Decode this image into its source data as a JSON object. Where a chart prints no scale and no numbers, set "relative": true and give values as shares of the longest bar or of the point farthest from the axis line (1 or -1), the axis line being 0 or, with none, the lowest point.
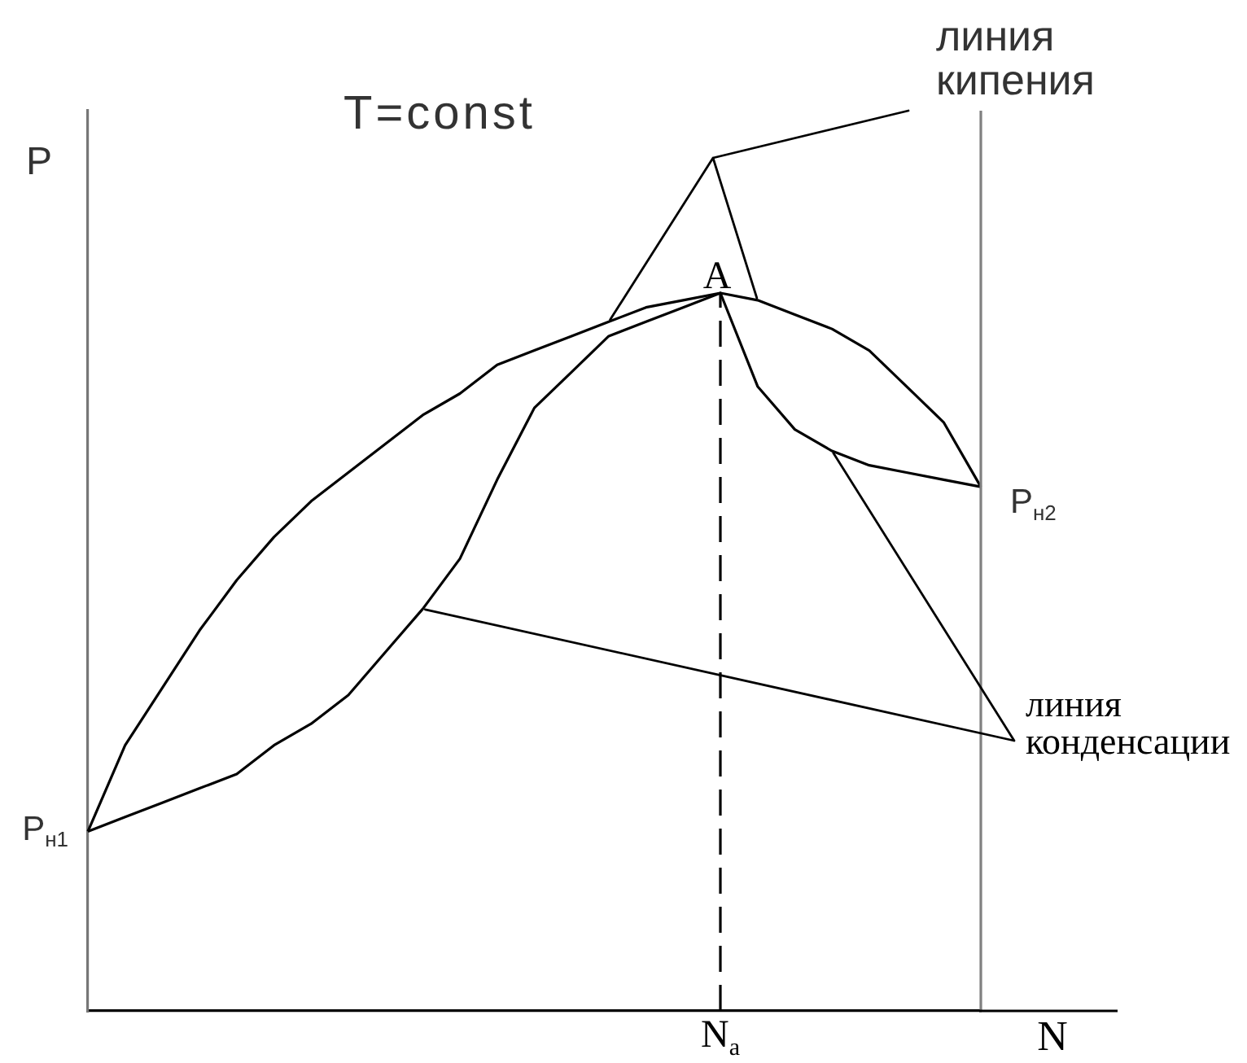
{
  "chart_data": {
    "type": "line",
    "title": "T=const",
    "xlabel": "N",
    "ylabel": "P",
    "relative": true,
    "categories": [
      null,
      null,
      null,
      null,
      null,
      null,
      null,
      null,
      null,
      null,
      null,
      null,
      null,
      null,
      null,
      null,
      null,
      null,
      null,
      null,
      null,
      null,
      null,
      null,
      null
    ],
    "series": [
      {
        "color": "#000000",
        "values": [
          0.25,
          0.37,
          0.45,
          0.53,
          0.6,
          0.66,
          0.71,
          0.75,
          0.79,
          0.83,
          0.86,
          0.9,
          0.92,
          0.94,
          0.96,
          0.98,
          0.99,
          1,
          0.99,
          0.97,
          0.95,
          0.92,
          0.87,
          0.82,
          0.73
        ]
      },
      {
        "color": "#000000",
        "values": [
          0.25,
          0.27,
          0.29,
          0.31,
          0.33,
          0.37,
          0.4,
          0.44,
          0.5,
          0.56,
          0.63,
          0.74,
          0.84,
          0.89,
          0.94,
          0.96,
          0.98,
          1,
          0.87,
          0.81,
          0.78,
          0.76,
          0.75,
          0.74,
          0.73
        ]
      }
    ],
    "annotations": [
      {
        "text": "A",
        "y": 1
      },
      "P$_{н1}$",
      "P$_{н2}$",
      "N$_{а}$",
      "линия кипения",
      "линия конденсации"
    ],
    "grid": false,
    "legend": false,
    "marker": "none",
    "line_style": "solid"
  }
}
